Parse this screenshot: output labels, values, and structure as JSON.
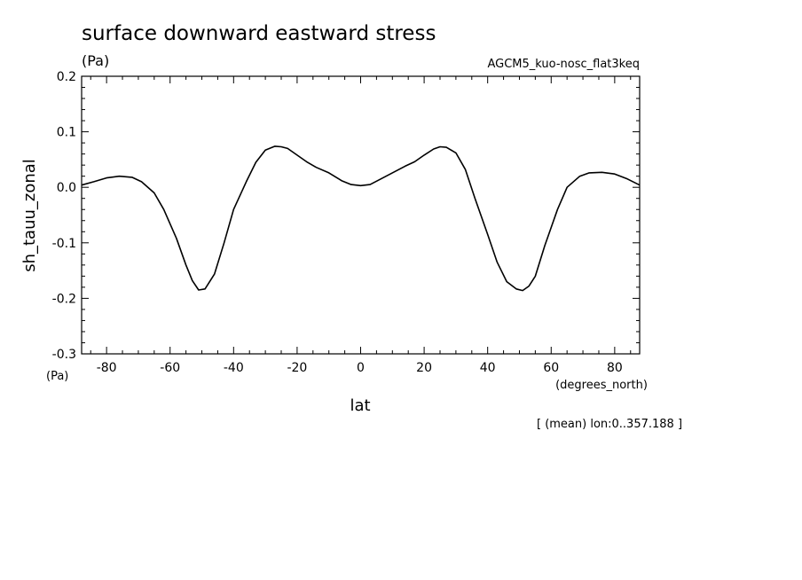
{
  "chart_data": {
    "type": "line",
    "title": "surface downward eastward stress",
    "title_units": "(Pa)",
    "run_label": "AGCM5_kuo-nosc_flat3keq",
    "ylabel": "sh_tauu_zonal",
    "y_units": "(Pa)",
    "xlabel": "lat",
    "x_units": "(degrees_north)",
    "footnote": "[ (mean) lon:0..357.188 ]",
    "xlim": [
      -87.86,
      87.86
    ],
    "ylim": [
      -0.3,
      0.2
    ],
    "x_ticks": [
      -80,
      -60,
      -40,
      -20,
      0,
      20,
      40,
      60,
      80
    ],
    "x_tick_labels": [
      "-80",
      "-60",
      "-40",
      "-20",
      "0",
      "20",
      "40",
      "60",
      "80"
    ],
    "y_ticks": [
      -0.3,
      -0.2,
      -0.1,
      0.0,
      0.1,
      0.2
    ],
    "y_tick_labels": [
      "-0.3",
      "-0.2",
      "-0.1",
      "0.0",
      "0.1",
      "0.2"
    ],
    "grid": false,
    "line_color": "#000000",
    "series": [
      {
        "x": [
          -87.86,
          -84,
          -80,
          -76,
          -72,
          -69,
          -65,
          -62,
          -58,
          -55,
          -53,
          -51,
          -49,
          -46,
          -43,
          -40,
          -36,
          -33,
          -30,
          -27,
          -25,
          -23,
          -20,
          -17,
          -14,
          -10,
          -6,
          -3,
          0,
          3,
          6,
          10,
          14,
          17,
          20,
          23,
          25,
          27,
          30,
          33,
          36,
          40,
          43,
          46,
          49,
          51,
          53,
          55,
          58,
          62,
          65,
          69,
          72,
          76,
          80,
          84,
          87.86
        ],
        "y": [
          0.004,
          0.01,
          0.017,
          0.02,
          0.018,
          0.01,
          -0.01,
          -0.04,
          -0.092,
          -0.14,
          -0.168,
          -0.185,
          -0.183,
          -0.156,
          -0.1,
          -0.04,
          0.01,
          0.045,
          0.067,
          0.074,
          0.073,
          0.07,
          0.058,
          0.046,
          0.036,
          0.026,
          0.012,
          0.005,
          0.003,
          0.005,
          0.014,
          0.026,
          0.038,
          0.046,
          0.058,
          0.069,
          0.073,
          0.072,
          0.062,
          0.032,
          -0.02,
          -0.085,
          -0.135,
          -0.17,
          -0.183,
          -0.186,
          -0.178,
          -0.16,
          -0.105,
          -0.04,
          0.0,
          0.02,
          0.026,
          0.027,
          0.024,
          0.015,
          0.004
        ]
      }
    ]
  }
}
